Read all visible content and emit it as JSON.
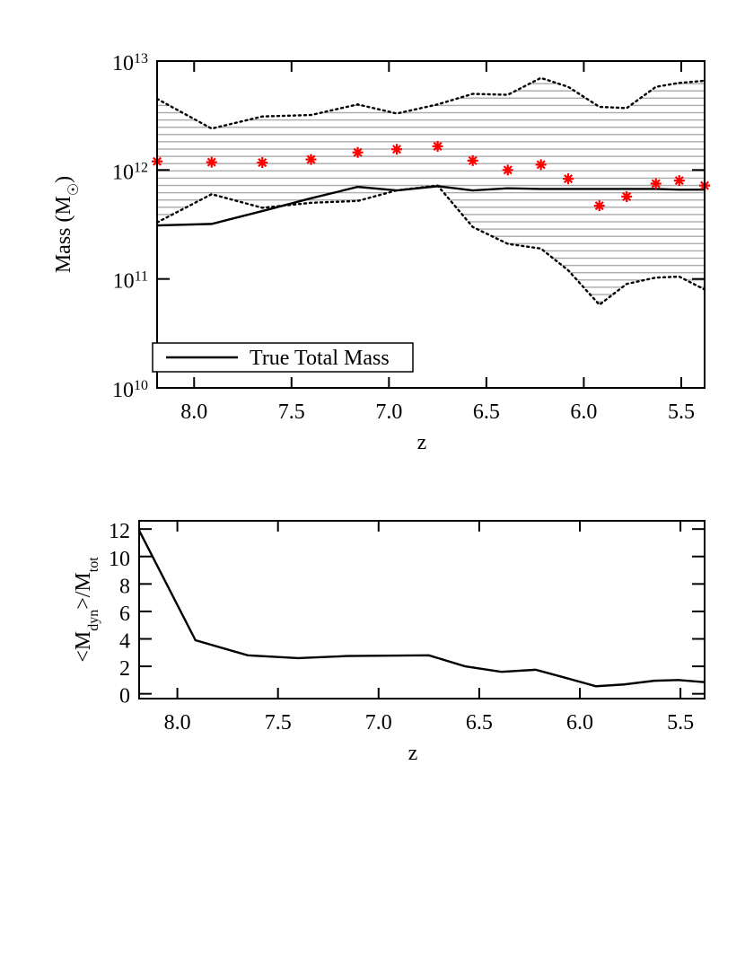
{
  "chart_data": [
    {
      "type": "line",
      "log_y": true,
      "x_label": "z",
      "y_label": "Mass (M_{☉})",
      "xlim": [
        8.19,
        5.38
      ],
      "xticks": [
        {
          "value": 8.0,
          "label": "8.0"
        },
        {
          "value": 7.5,
          "label": "7.5"
        },
        {
          "value": 7.0,
          "label": "7.0"
        },
        {
          "value": 6.5,
          "label": "6.5"
        },
        {
          "value": 6.0,
          "label": "6.0"
        },
        {
          "value": 5.5,
          "label": "5.5"
        }
      ],
      "ylim": [
        10000000000.0,
        10000000000000.0
      ],
      "yticks": [
        {
          "value": 10000000000.0,
          "label": "10^{10}"
        },
        {
          "value": 100000000000.0,
          "label": "10^{11}"
        },
        {
          "value": 1000000000000.0,
          "label": "10^{12}"
        },
        {
          "value": 10000000000000.0,
          "label": "10^{13}"
        }
      ],
      "legend": "lower left",
      "x": [
        8.19,
        7.91,
        7.65,
        7.4,
        7.16,
        6.96,
        6.75,
        6.57,
        6.39,
        6.22,
        6.08,
        5.92,
        5.78,
        5.63,
        5.51,
        5.38
      ],
      "series": [
        {
          "color": "#000000",
          "style": "dotted",
          "band": "upper",
          "values": [
            4500000000000.0,
            2400000000000.0,
            3100000000000.0,
            3200000000000.0,
            4000000000000.0,
            3300000000000.0,
            4000000000000.0,
            5000000000000.0,
            4900000000000.0,
            7000000000000.0,
            5800000000000.0,
            3800000000000.0,
            3700000000000.0,
            5800000000000.0,
            6300000000000.0,
            6600000000000.0
          ]
        },
        {
          "color": "#000000",
          "style": "dotted",
          "band": "lower",
          "values": [
            330000000000.0,
            600000000000.0,
            450000000000.0,
            500000000000.0,
            520000000000.0,
            650000000000.0,
            720000000000.0,
            300000000000.0,
            210000000000.0,
            190000000000.0,
            120000000000.0,
            58000000000.0,
            90000000000.0,
            103000000000.0,
            105000000000.0,
            80000000000.0
          ]
        },
        {
          "name": "True Total Mass",
          "color": "#000000",
          "style": "solid",
          "values": [
            310000000000.0,
            320000000000.0,
            420000000000.0,
            550000000000.0,
            700000000000.0,
            650000000000.0,
            710000000000.0,
            650000000000.0,
            680000000000.0,
            670000000000.0,
            670000000000.0,
            670000000000.0,
            670000000000.0,
            670000000000.0,
            660000000000.0,
            660000000000.0
          ]
        },
        {
          "color": "#ff0000",
          "style": "marker",
          "values": [
            1200000000000.0,
            1180000000000.0,
            1170000000000.0,
            1250000000000.0,
            1450000000000.0,
            1550000000000.0,
            1650000000000.0,
            1220000000000.0,
            1000000000000.0,
            1120000000000.0,
            830000000000.0,
            470000000000.0,
            570000000000.0,
            750000000000.0,
            800000000000.0,
            720000000000.0
          ]
        }
      ]
    },
    {
      "type": "line",
      "log_y": false,
      "x_label": "z",
      "y_label": "<M_{dyn}>/M_{tot}",
      "xlim": [
        8.19,
        5.38
      ],
      "xticks": [
        {
          "value": 8.0,
          "label": "8.0"
        },
        {
          "value": 7.5,
          "label": "7.5"
        },
        {
          "value": 7.0,
          "label": "7.0"
        },
        {
          "value": 6.5,
          "label": "6.5"
        },
        {
          "value": 6.0,
          "label": "6.0"
        },
        {
          "value": 5.5,
          "label": "5.5"
        }
      ],
      "ylim": [
        -0.35,
        12.6
      ],
      "yticks": [
        0,
        2,
        4,
        6,
        8,
        10,
        12
      ],
      "x": [
        8.19,
        7.91,
        7.65,
        7.4,
        7.16,
        6.96,
        6.75,
        6.57,
        6.39,
        6.22,
        6.08,
        5.92,
        5.78,
        5.63,
        5.51,
        5.38
      ],
      "series": [
        {
          "color": "#000000",
          "style": "solid",
          "values": [
            11.9,
            3.9,
            2.8,
            2.6,
            2.75,
            2.78,
            2.8,
            2.0,
            1.6,
            1.75,
            1.2,
            0.55,
            0.68,
            0.95,
            1.0,
            0.85
          ]
        }
      ]
    }
  ]
}
